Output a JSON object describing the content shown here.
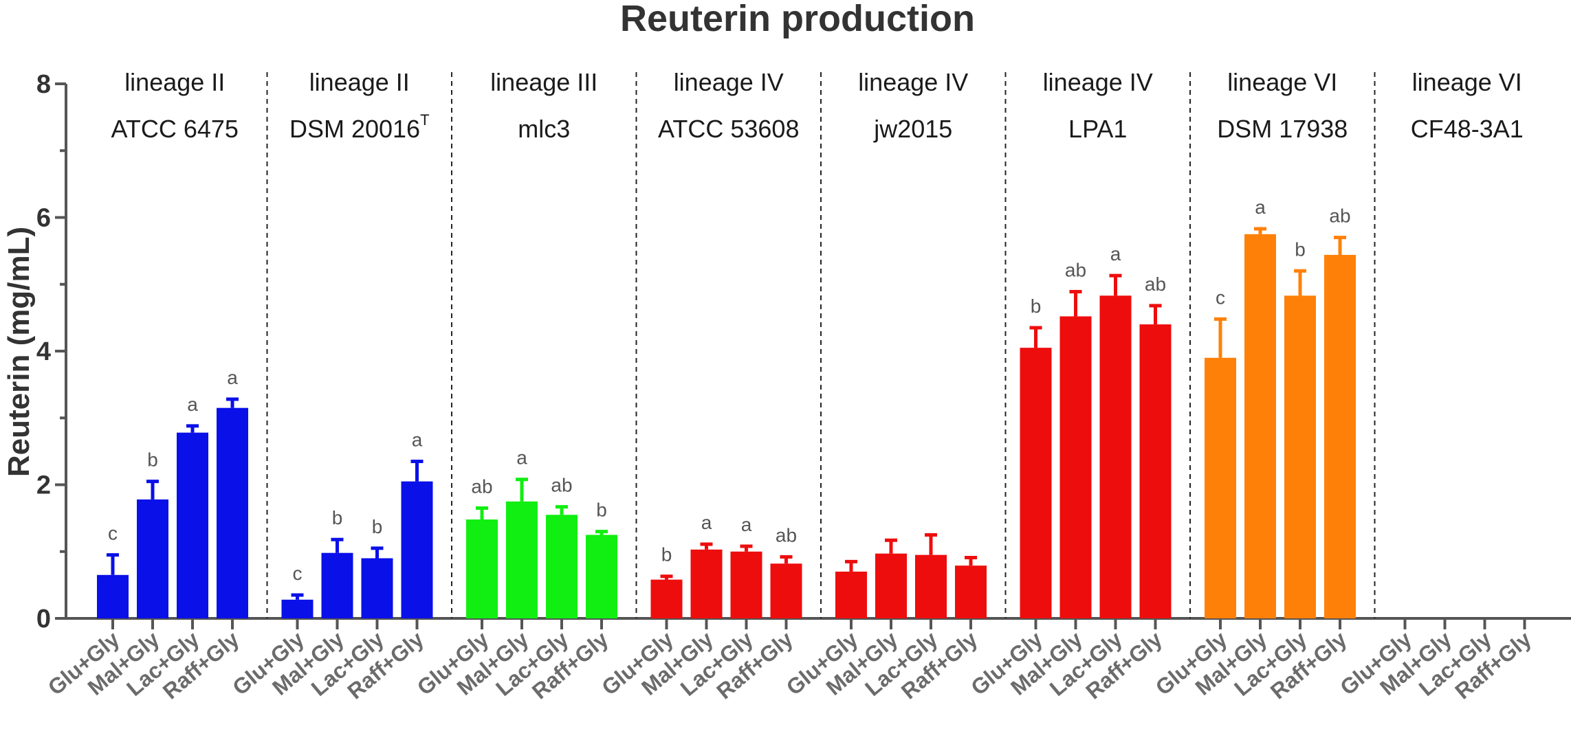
{
  "chart_data": {
    "type": "bar",
    "title": "Reuterin production",
    "xlabel": "",
    "ylabel": "Reuterin (mg/mL)",
    "ylim": [
      0,
      8
    ],
    "yticks": [
      "0",
      "2",
      "4",
      "6",
      "8"
    ],
    "categories": [
      "Glu+Gly",
      "Mal+Gly",
      "Lac+Gly",
      "Raff+Gly"
    ],
    "error_bars": "upper",
    "groups": [
      {
        "lineage": "lineage II",
        "strain": "ATCC 6475",
        "strain_sup": "",
        "color": "#0a10e8",
        "values": [
          0.65,
          1.78,
          2.78,
          3.15
        ],
        "errors": [
          0.3,
          0.27,
          0.1,
          0.13
        ],
        "letters": [
          "c",
          "b",
          "a",
          "a"
        ]
      },
      {
        "lineage": "lineage II",
        "strain": "DSM 20016",
        "strain_sup": "T",
        "color": "#0a10e8",
        "values": [
          0.28,
          0.98,
          0.9,
          2.05
        ],
        "errors": [
          0.07,
          0.2,
          0.15,
          0.3
        ],
        "letters": [
          "c",
          "b",
          "b",
          "a"
        ]
      },
      {
        "lineage": "lineage III",
        "strain": "mlc3",
        "strain_sup": "",
        "color": "#11ee11",
        "values": [
          1.48,
          1.75,
          1.55,
          1.25
        ],
        "errors": [
          0.17,
          0.33,
          0.12,
          0.05
        ],
        "letters": [
          "ab",
          "a",
          "ab",
          "b"
        ]
      },
      {
        "lineage": "lineage IV",
        "strain": "ATCC 53608",
        "strain_sup": "",
        "color": "#ee0d0d",
        "values": [
          0.58,
          1.03,
          1.0,
          0.82
        ],
        "errors": [
          0.05,
          0.08,
          0.08,
          0.1
        ],
        "letters": [
          "b",
          "a",
          "a",
          "ab"
        ]
      },
      {
        "lineage": "lineage IV",
        "strain": "jw2015",
        "strain_sup": "",
        "color": "#ee0d0d",
        "values": [
          0.7,
          0.97,
          0.95,
          0.79
        ],
        "errors": [
          0.15,
          0.2,
          0.3,
          0.12
        ],
        "letters": [
          "",
          "",
          "",
          ""
        ]
      },
      {
        "lineage": "lineage IV",
        "strain": "LPA1",
        "strain_sup": "",
        "color": "#ee0d0d",
        "values": [
          4.05,
          4.52,
          4.83,
          4.4
        ],
        "errors": [
          0.3,
          0.37,
          0.3,
          0.28
        ],
        "letters": [
          "b",
          "ab",
          "a",
          "ab"
        ]
      },
      {
        "lineage": "lineage VI",
        "strain": "DSM 17938",
        "strain_sup": "",
        "color": "#ff8008",
        "values": [
          3.9,
          5.75,
          4.83,
          5.44
        ],
        "errors": [
          0.58,
          0.08,
          0.37,
          0.26
        ],
        "letters": [
          "c",
          "a",
          "b",
          "ab"
        ]
      },
      {
        "lineage": "lineage VI",
        "strain": "CF48-3A1",
        "strain_sup": "",
        "color": "#ff8008",
        "values": [
          0,
          0,
          0,
          0
        ],
        "errors": [
          0,
          0,
          0,
          0
        ],
        "letters": [
          "",
          "",
          "",
          ""
        ]
      }
    ]
  }
}
